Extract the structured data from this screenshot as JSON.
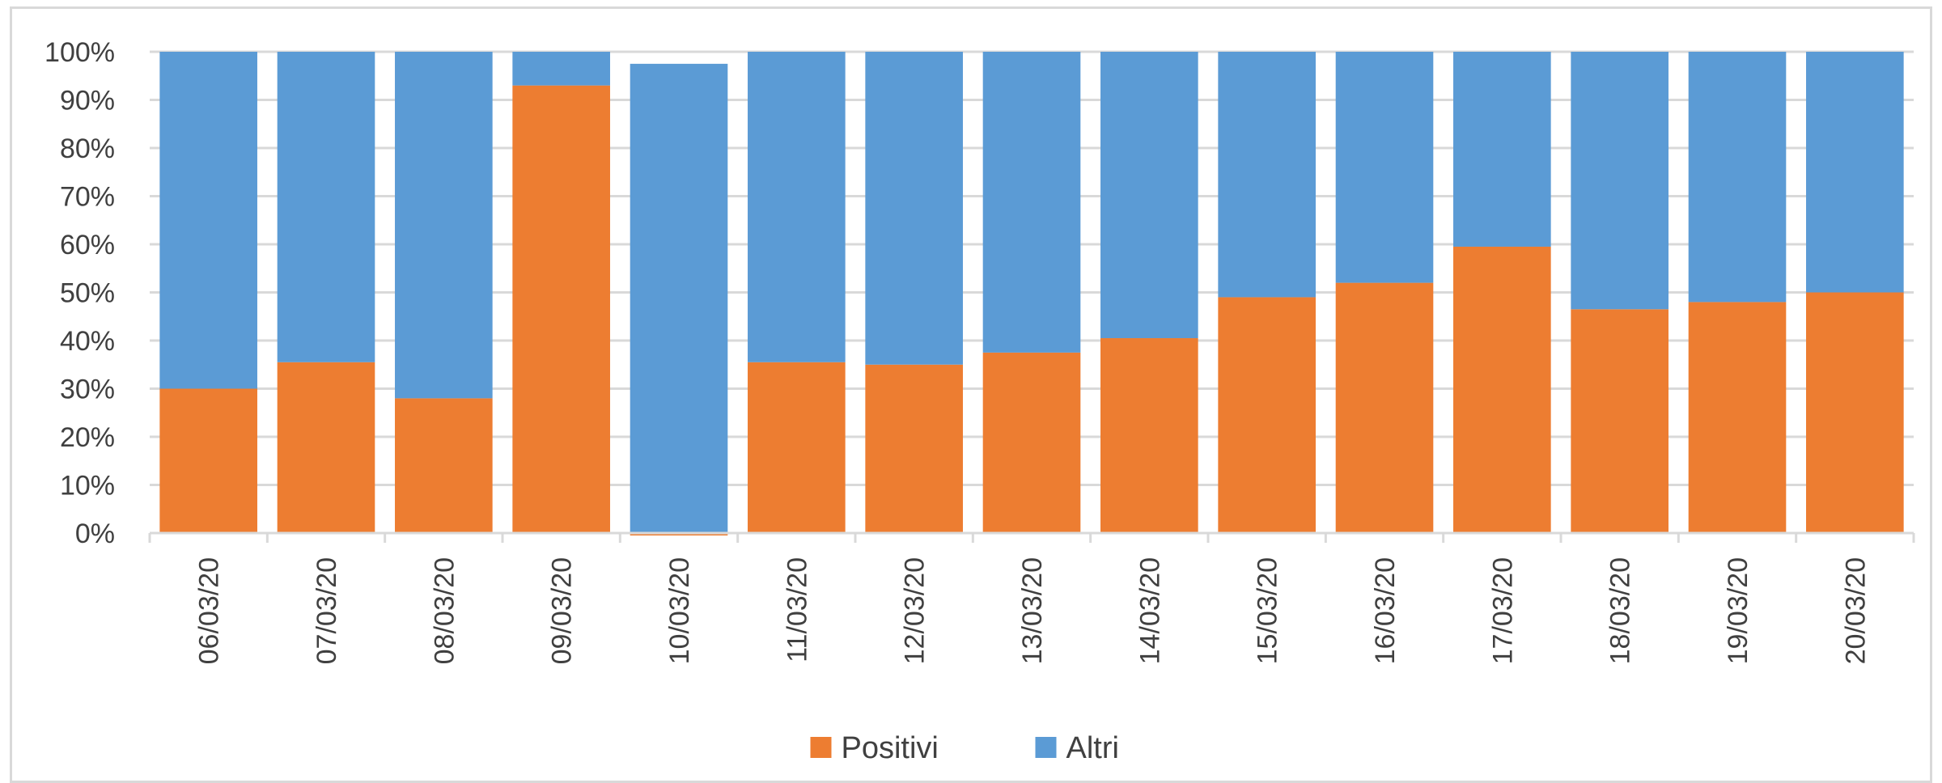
{
  "chart_data": {
    "type": "bar",
    "stacked": true,
    "categories": [
      "06/03/20",
      "07/03/20",
      "08/03/20",
      "09/03/20",
      "10/03/20",
      "11/03/20",
      "12/03/20",
      "13/03/20",
      "14/03/20",
      "15/03/20",
      "16/03/20",
      "17/03/20",
      "18/03/20",
      "19/03/20",
      "20/03/20"
    ],
    "series": [
      {
        "name": "Positivi",
        "color": "#ED7D31",
        "values": [
          30,
          35.5,
          28,
          93,
          -0.5,
          35.5,
          35,
          37.5,
          40.5,
          49,
          52,
          59.5,
          46.5,
          48,
          50
        ]
      },
      {
        "name": "Altri",
        "color": "#5B9BD5",
        "values": [
          70,
          64.5,
          72,
          7,
          97.5,
          64.5,
          65,
          62.5,
          59.5,
          51,
          48,
          40.5,
          53.5,
          52,
          50
        ]
      }
    ],
    "y_ticks": [
      "0%",
      "10%",
      "20%",
      "30%",
      "40%",
      "50%",
      "60%",
      "70%",
      "80%",
      "90%",
      "100%"
    ],
    "ylim": [
      0,
      100
    ],
    "y_unit": "%",
    "grid": true,
    "legend_position": "bottom",
    "title": "",
    "xlabel": "",
    "ylabel": ""
  }
}
